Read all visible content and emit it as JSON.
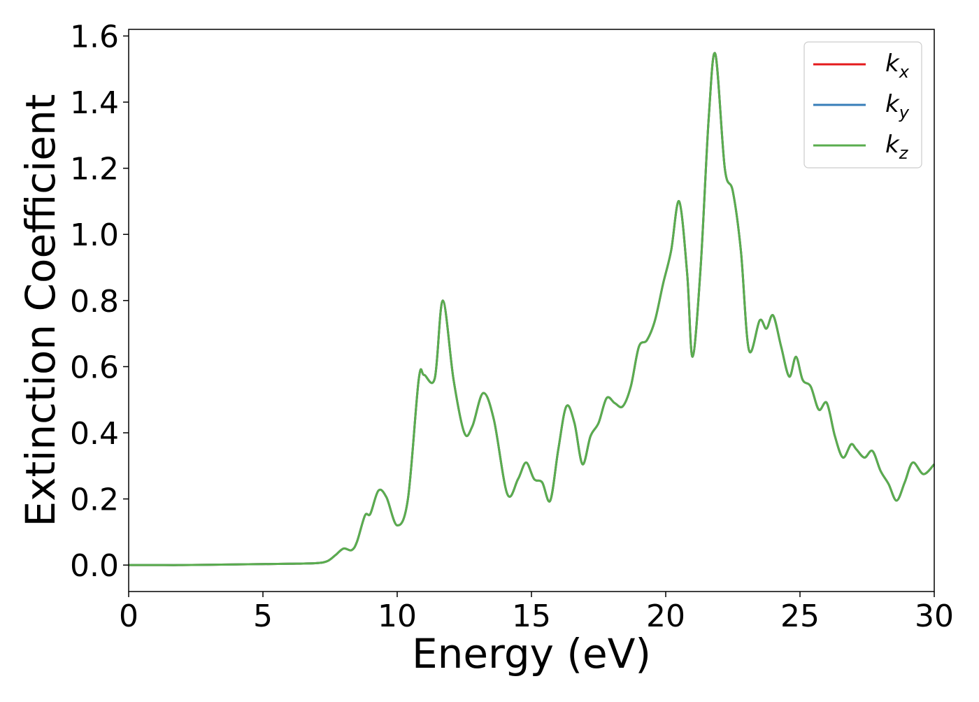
{
  "chart_data": {
    "type": "line",
    "title": "",
    "xlabel": "Energy (eV)",
    "ylabel": "Extinction Coefficient",
    "xlim": [
      0,
      30
    ],
    "ylim": [
      -0.08,
      1.62
    ],
    "xticks": [
      0,
      5,
      10,
      15,
      20,
      25,
      30
    ],
    "xtick_labels": [
      "0",
      "5",
      "10",
      "15",
      "20",
      "25",
      "30"
    ],
    "yticks": [
      0.0,
      0.2,
      0.4,
      0.6,
      0.8,
      1.0,
      1.2,
      1.4,
      1.6
    ],
    "ytick_labels": [
      "0.0",
      "0.2",
      "0.4",
      "0.6",
      "0.8",
      "1.0",
      "1.2",
      "1.4",
      "1.6"
    ],
    "grid": false,
    "legend_position": "top-right",
    "x": [
      0,
      1,
      2,
      3,
      4,
      5,
      6,
      7,
      7.4,
      7.7,
      8.0,
      8.3,
      8.5,
      8.8,
      9.0,
      9.3,
      9.6,
      10.0,
      10.4,
      10.8,
      11.0,
      11.4,
      11.7,
      12.1,
      12.5,
      12.8,
      13.2,
      13.6,
      14.1,
      14.5,
      14.8,
      15.1,
      15.4,
      15.7,
      16.0,
      16.3,
      16.6,
      16.9,
      17.2,
      17.5,
      17.8,
      18.1,
      18.4,
      18.7,
      19.0,
      19.3,
      19.6,
      19.9,
      20.2,
      20.5,
      20.8,
      21.0,
      21.3,
      21.6,
      21.85,
      22.2,
      22.5,
      22.8,
      23.1,
      23.5,
      23.75,
      24.0,
      24.3,
      24.6,
      24.85,
      25.1,
      25.4,
      25.7,
      26.0,
      26.3,
      26.6,
      26.9,
      27.1,
      27.4,
      27.7,
      28.0,
      28.3,
      28.6,
      28.9,
      29.2,
      29.6,
      30.0
    ],
    "series": [
      {
        "name": "k_x",
        "label_main": "k",
        "label_sub": "x",
        "color": "#e41a1c",
        "values": [
          0,
          0,
          0,
          0.001,
          0.002,
          0.003,
          0.004,
          0.006,
          0.012,
          0.03,
          0.05,
          0.045,
          0.07,
          0.15,
          0.155,
          0.225,
          0.205,
          0.12,
          0.2,
          0.56,
          0.575,
          0.565,
          0.8,
          0.56,
          0.4,
          0.42,
          0.52,
          0.44,
          0.215,
          0.26,
          0.31,
          0.26,
          0.25,
          0.195,
          0.35,
          0.48,
          0.43,
          0.305,
          0.39,
          0.43,
          0.505,
          0.49,
          0.48,
          0.54,
          0.66,
          0.68,
          0.74,
          0.85,
          0.95,
          1.1,
          0.88,
          0.63,
          0.9,
          1.35,
          1.545,
          1.2,
          1.13,
          0.95,
          0.65,
          0.74,
          0.715,
          0.755,
          0.66,
          0.57,
          0.63,
          0.56,
          0.54,
          0.47,
          0.49,
          0.39,
          0.325,
          0.365,
          0.35,
          0.325,
          0.345,
          0.285,
          0.245,
          0.195,
          0.25,
          0.31,
          0.275,
          0.305
        ]
      },
      {
        "name": "k_y",
        "label_main": "k",
        "label_sub": "y",
        "color": "#377eb8",
        "values": [
          0,
          0,
          0,
          0.001,
          0.002,
          0.003,
          0.004,
          0.006,
          0.012,
          0.03,
          0.05,
          0.045,
          0.07,
          0.15,
          0.155,
          0.225,
          0.205,
          0.12,
          0.2,
          0.56,
          0.575,
          0.565,
          0.8,
          0.56,
          0.4,
          0.42,
          0.52,
          0.44,
          0.215,
          0.26,
          0.31,
          0.26,
          0.25,
          0.195,
          0.35,
          0.48,
          0.43,
          0.305,
          0.39,
          0.43,
          0.505,
          0.49,
          0.48,
          0.54,
          0.66,
          0.68,
          0.74,
          0.85,
          0.95,
          1.1,
          0.88,
          0.63,
          0.9,
          1.35,
          1.545,
          1.2,
          1.13,
          0.95,
          0.65,
          0.74,
          0.715,
          0.755,
          0.66,
          0.57,
          0.63,
          0.56,
          0.54,
          0.47,
          0.49,
          0.39,
          0.325,
          0.365,
          0.35,
          0.325,
          0.345,
          0.285,
          0.245,
          0.195,
          0.25,
          0.31,
          0.275,
          0.305
        ]
      },
      {
        "name": "k_z",
        "label_main": "k",
        "label_sub": "z",
        "color": "#5aad4e",
        "values": [
          0,
          0,
          0,
          0.001,
          0.002,
          0.003,
          0.004,
          0.006,
          0.012,
          0.03,
          0.05,
          0.045,
          0.07,
          0.15,
          0.155,
          0.225,
          0.205,
          0.12,
          0.2,
          0.56,
          0.575,
          0.565,
          0.8,
          0.56,
          0.4,
          0.42,
          0.52,
          0.44,
          0.215,
          0.26,
          0.31,
          0.26,
          0.25,
          0.195,
          0.35,
          0.48,
          0.43,
          0.305,
          0.39,
          0.43,
          0.505,
          0.49,
          0.48,
          0.54,
          0.66,
          0.68,
          0.74,
          0.85,
          0.95,
          1.1,
          0.88,
          0.63,
          0.9,
          1.35,
          1.545,
          1.2,
          1.13,
          0.95,
          0.65,
          0.74,
          0.715,
          0.755,
          0.66,
          0.57,
          0.63,
          0.56,
          0.54,
          0.47,
          0.49,
          0.39,
          0.325,
          0.365,
          0.35,
          0.325,
          0.345,
          0.285,
          0.245,
          0.195,
          0.25,
          0.31,
          0.275,
          0.305
        ]
      }
    ]
  }
}
